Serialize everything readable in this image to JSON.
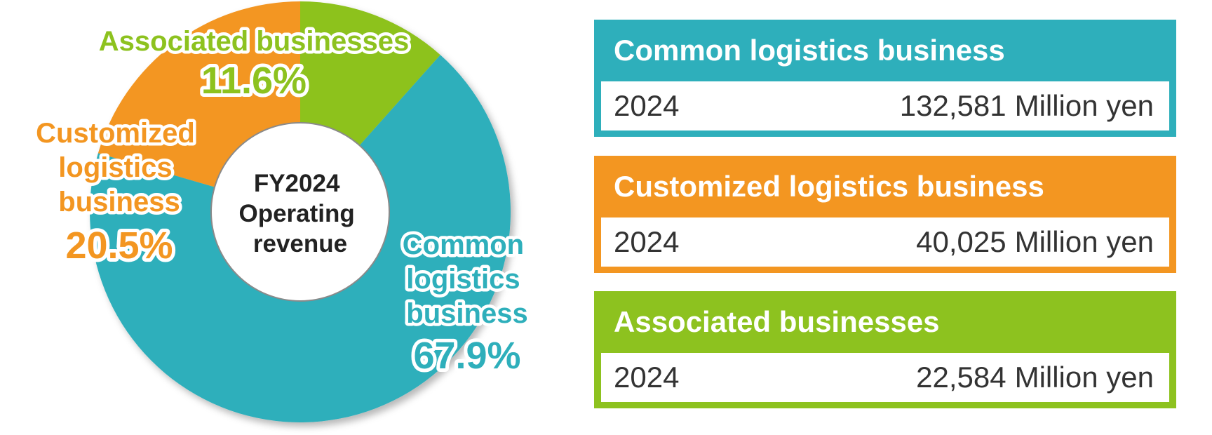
{
  "chart_data": {
    "type": "pie",
    "center_label": [
      "FY2024",
      "Operating",
      "revenue"
    ],
    "slices": [
      {
        "name_lines": [
          "Associated businesses"
        ],
        "value": 11.6,
        "label": "11.6%",
        "color": "#8dc21f"
      },
      {
        "name_lines": [
          "Common",
          "logistics",
          "business"
        ],
        "value": 67.9,
        "label": "67.9%",
        "color": "#2eafbb"
      },
      {
        "name_lines": [
          "Customized",
          "logistics",
          "business"
        ],
        "value": 20.5,
        "label": "20.5%",
        "color": "#f39621"
      }
    ]
  },
  "cards": [
    {
      "title": "Common logistics business",
      "year": "2024",
      "value": "132,581",
      "unit": "Million yen",
      "color": "#2eafbb"
    },
    {
      "title": "Customized logistics business",
      "year": "2024",
      "value": "40,025",
      "unit": "Million yen",
      "color": "#f39621"
    },
    {
      "title": "Associated businesses",
      "year": "2024",
      "value": "22,584",
      "unit": "Million yen",
      "color": "#8dc21f"
    }
  ]
}
